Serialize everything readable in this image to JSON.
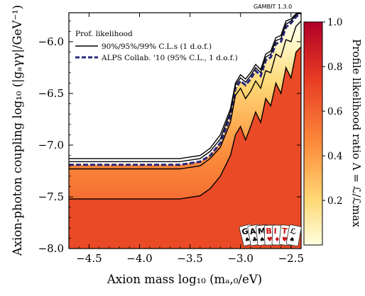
{
  "watermark": "GAMBIT 1.3.0",
  "logo": {
    "letters": [
      "G",
      "A",
      "M",
      "B",
      "I",
      "T",
      "ℒ"
    ],
    "suits": [
      "♠",
      "♣",
      "♠",
      "♥",
      "♦",
      "♥",
      "♠"
    ],
    "suit_colors": [
      "#000000",
      "#000000",
      "#000000",
      "#cc1111",
      "#cc1111",
      "#cc1111",
      "#000000"
    ]
  },
  "chart_data": {
    "type": "heatmap",
    "title": "",
    "xlabel": "Axion mass log₁₀ (mₐ,₀/eV)",
    "ylabel": "Axion-photon coupling log₁₀ (|gₐγγ|/GeV⁻¹)",
    "xlim": [
      -4.7,
      -2.4
    ],
    "ylim": [
      -8.0,
      -5.72
    ],
    "x_ticks": [
      -4.5,
      -4.0,
      -3.5,
      -3.0,
      -2.5
    ],
    "x_tick_labels": [
      "−4.5",
      "−4.0",
      "−3.5",
      "−3.0",
      "−2.5"
    ],
    "y_ticks": [
      -8.0,
      -7.5,
      -7.0,
      -6.5,
      -6.0
    ],
    "y_tick_labels": [
      "−8.0",
      "−7.5",
      "−7.0",
      "−6.5",
      "−6.0"
    ],
    "grid": false,
    "colorbar": {
      "label": "Profile likelihood ratio Λ = ℒ/ℒmax",
      "ticks": [
        0.2,
        0.4,
        0.6,
        0.8,
        1.0
      ],
      "tick_labels": [
        "0.2",
        "0.4",
        "0.6",
        "0.8",
        "1.0"
      ],
      "range": [
        0,
        1
      ],
      "colors": [
        "#ffffe0",
        "#fed976",
        "#fd8d3c",
        "#e83a24",
        "#b00026"
      ]
    },
    "legend": {
      "placement": "top-left",
      "title": "Prof. likelihood",
      "entries": [
        {
          "label": "90%/95%/99% C.L.s (1 d.o.f.)",
          "style": "solid",
          "color": "#000000"
        },
        {
          "label": "ALPS Collab. '10 (95% C.L., 1 d.o.f.)",
          "style": "dashed",
          "color": "#2a2a7a"
        }
      ]
    },
    "series": [
      {
        "x": [
          -4.7,
          -3.6,
          -3.4,
          -3.3,
          -3.2,
          -3.1,
          -3.05,
          -3.0,
          -2.95,
          -2.9,
          -2.85,
          -2.8,
          -2.75,
          -2.7,
          -2.65,
          -2.6,
          -2.55,
          -2.5,
          -2.45,
          -2.4
        ],
        "y": [
          -7.19,
          -7.19,
          -7.16,
          -7.1,
          -6.98,
          -6.72,
          -6.45,
          -6.38,
          -6.42,
          -6.36,
          -6.28,
          -6.33,
          -6.18,
          -6.15,
          -6.02,
          -6.0,
          -5.86,
          -5.82,
          -5.76,
          -5.72
        ]
      },
      {
        "x": [
          -4.7,
          -3.6,
          -3.4,
          -3.3,
          -3.2,
          -3.1,
          -3.05,
          -3.0,
          -2.95,
          -2.9,
          -2.85,
          -2.8,
          -2.75,
          -2.7,
          -2.65,
          -2.6,
          -2.55,
          -2.5,
          -2.45,
          -2.4
        ],
        "y": [
          -7.16,
          -7.16,
          -7.13,
          -7.06,
          -6.94,
          -6.68,
          -6.42,
          -6.35,
          -6.39,
          -6.33,
          -6.25,
          -6.3,
          -6.15,
          -6.12,
          -5.99,
          -5.97,
          -5.83,
          -5.8,
          -5.74,
          -5.72
        ]
      },
      {
        "x": [
          -4.7,
          -3.6,
          -3.4,
          -3.3,
          -3.2,
          -3.1,
          -3.05,
          -3.0,
          -2.95,
          -2.9,
          -2.85,
          -2.8,
          -2.75,
          -2.7,
          -2.65,
          -2.6,
          -2.55,
          -2.5,
          -2.45,
          -2.4
        ],
        "y": [
          -7.13,
          -7.13,
          -7.1,
          -7.03,
          -6.9,
          -6.65,
          -6.4,
          -6.32,
          -6.36,
          -6.3,
          -6.22,
          -6.27,
          -6.12,
          -6.09,
          -5.96,
          -5.94,
          -5.8,
          -5.78,
          -5.73,
          -5.72
        ]
      },
      {
        "x": [
          -4.7,
          -3.6,
          -3.4,
          -3.3,
          -3.2,
          -3.1,
          -3.05,
          -3.0,
          -2.95,
          -2.9,
          -2.85,
          -2.8,
          -2.75,
          -2.7,
          -2.65,
          -2.6,
          -2.55,
          -2.5,
          -2.45,
          -2.4
        ],
        "y": [
          -7.23,
          -7.23,
          -7.2,
          -7.13,
          -7.02,
          -6.78,
          -6.52,
          -6.45,
          -6.55,
          -6.48,
          -6.38,
          -6.45,
          -6.28,
          -6.3,
          -6.12,
          -6.15,
          -5.98,
          -6.0,
          -5.85,
          -5.8
        ]
      },
      {
        "x": [
          -4.7,
          -3.6,
          -3.4,
          -3.3,
          -3.2,
          -3.1,
          -3.05,
          -3.0,
          -2.95,
          -2.9,
          -2.85,
          -2.8,
          -2.75,
          -2.7,
          -2.65,
          -2.6,
          -2.55,
          -2.5,
          -2.45,
          -2.4
        ],
        "y": [
          -7.52,
          -7.52,
          -7.49,
          -7.42,
          -7.3,
          -7.1,
          -6.9,
          -6.82,
          -6.95,
          -6.82,
          -6.68,
          -6.78,
          -6.55,
          -6.62,
          -6.4,
          -6.5,
          -6.25,
          -6.35,
          -6.1,
          -6.05
        ]
      }
    ]
  }
}
